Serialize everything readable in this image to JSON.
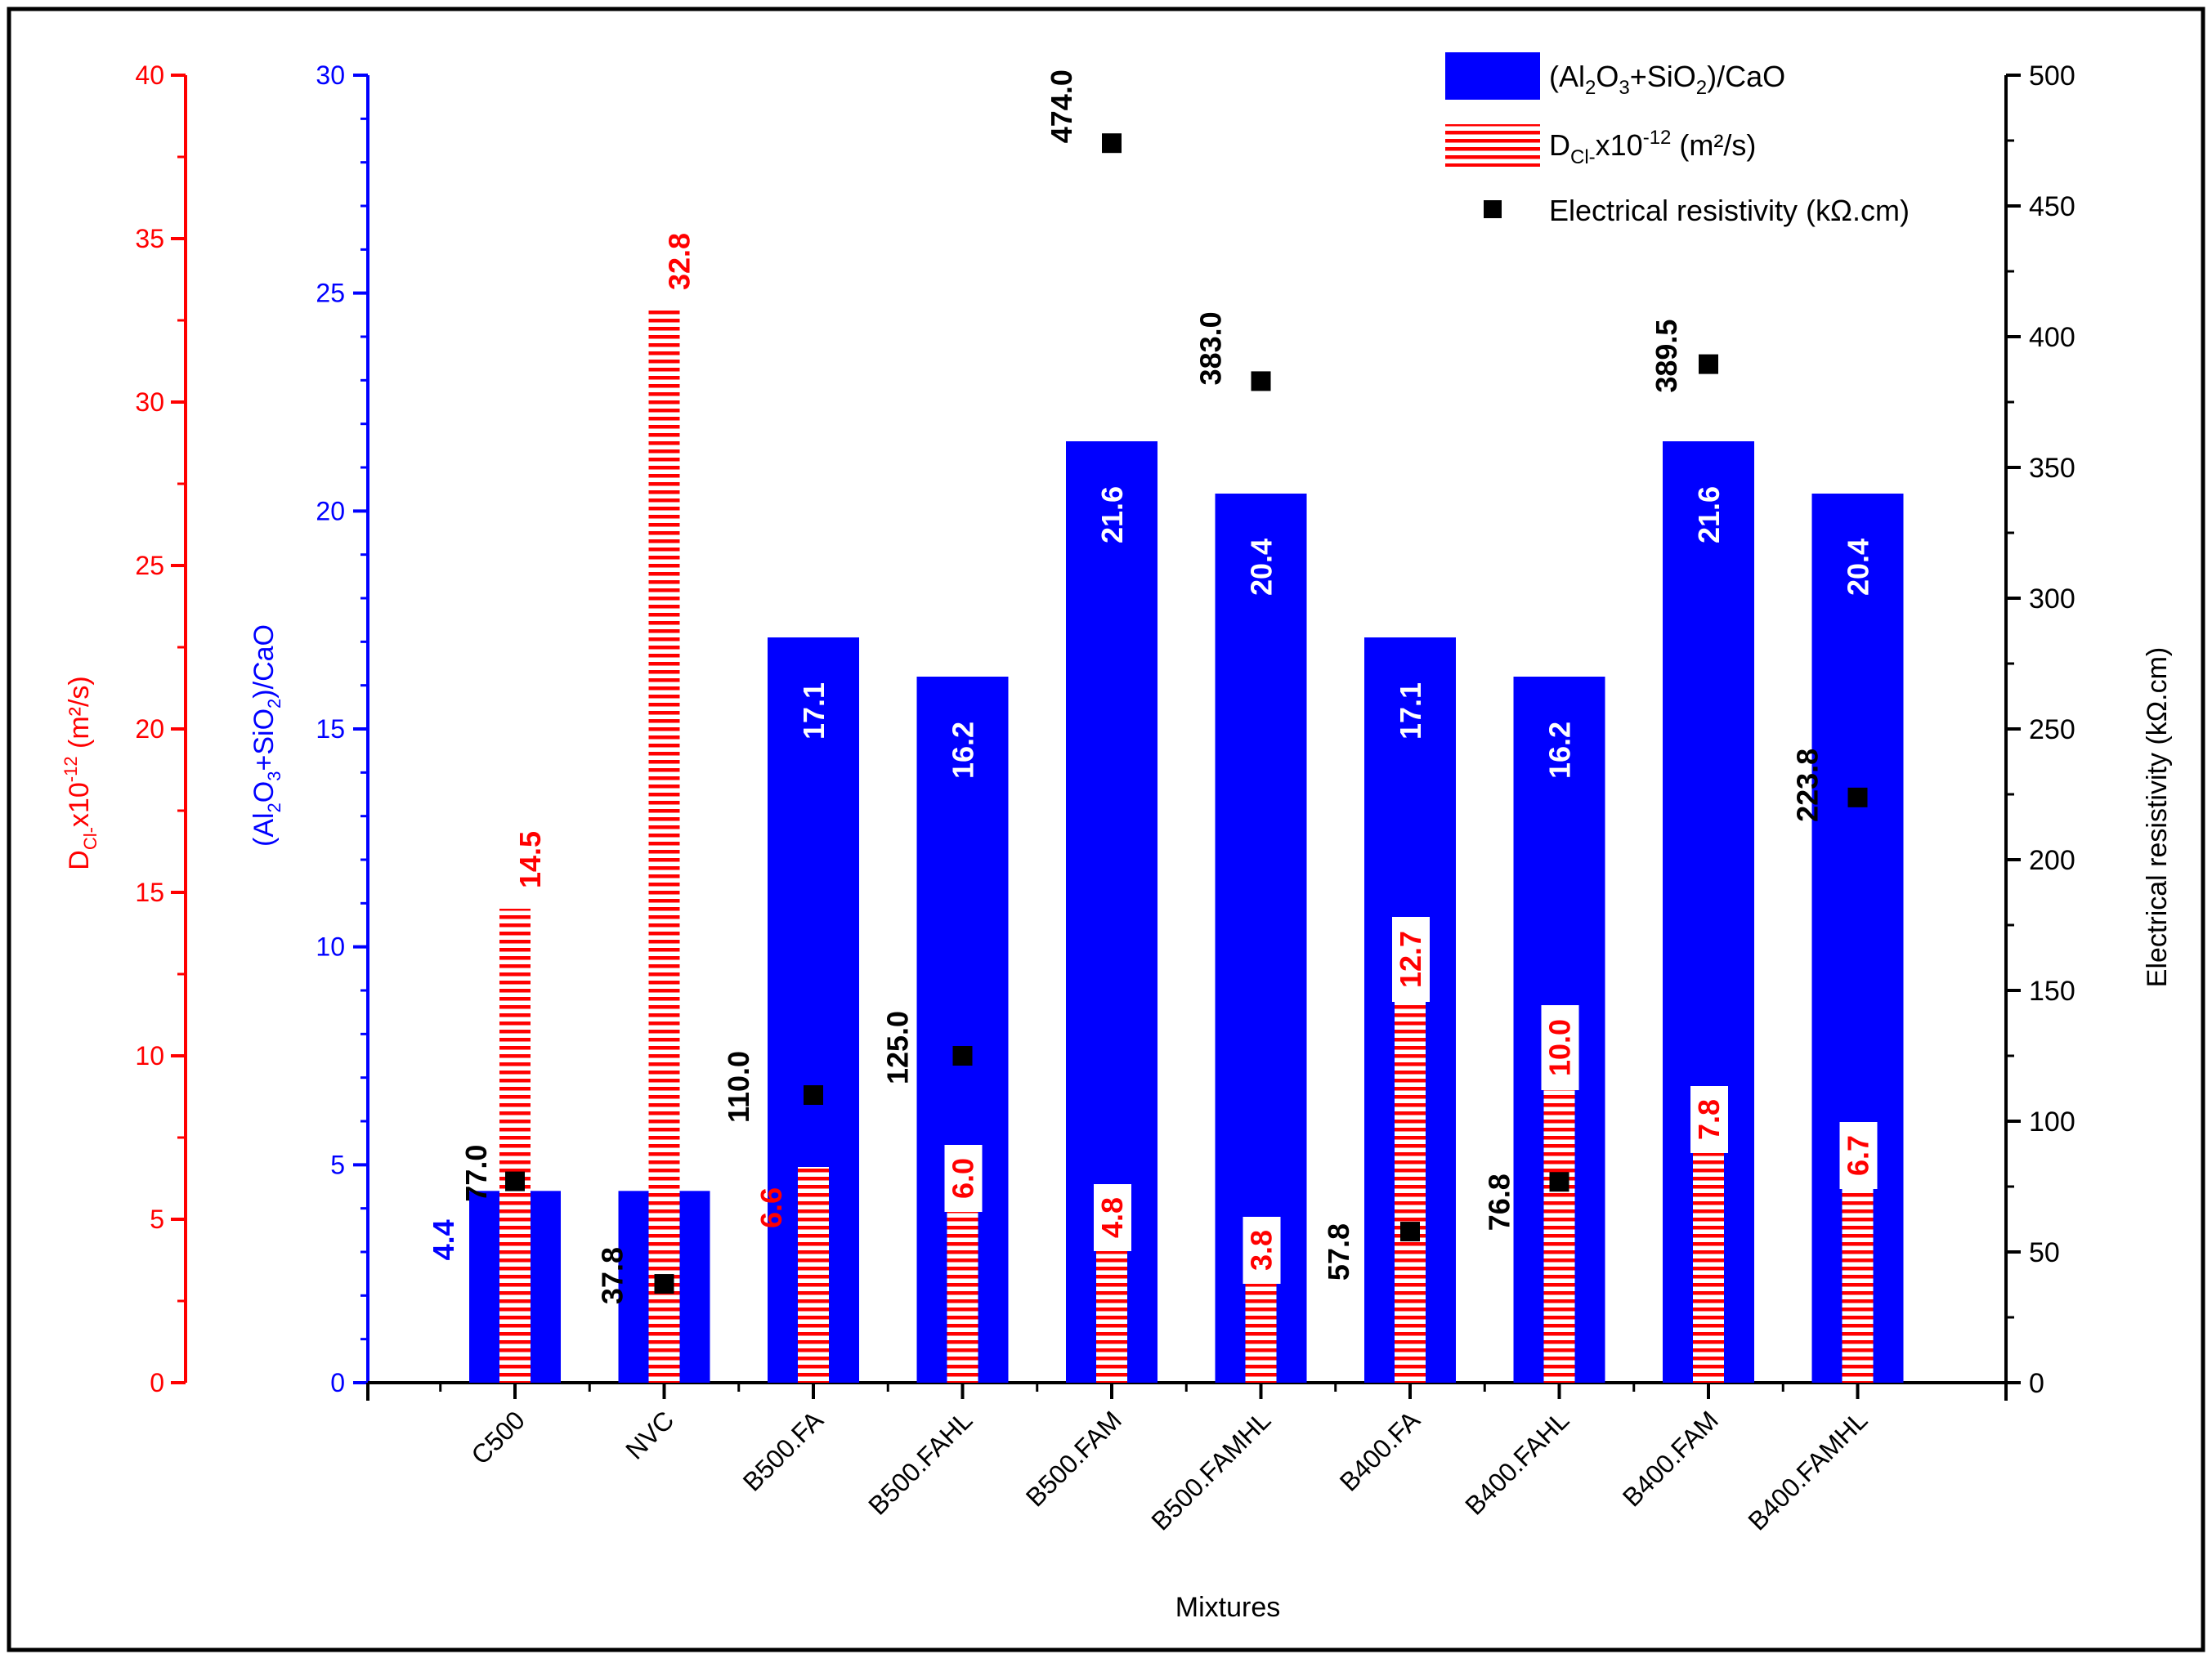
{
  "chart_data": {
    "type": "bar",
    "categories": [
      "C500",
      "NVC",
      "B500.FA",
      "B500.FAHL",
      "B500.FAM",
      "B500.FAMHL",
      "B400.FA",
      "B400.FAHL",
      "B400.FAM",
      "B400.FAMHL"
    ],
    "xlabel": "Mixtures",
    "series": [
      {
        "name": "(Al2O3+SiO2)/CaO",
        "axis": "left-inner",
        "values": [
          4.4,
          4.4,
          17.1,
          16.2,
          21.6,
          20.4,
          17.1,
          16.2,
          21.6,
          20.4
        ],
        "labels": [
          "4.4",
          "",
          "17.1",
          "16.2",
          "21.6",
          "20.4",
          "17.1",
          "16.2",
          "21.6",
          "20.4"
        ]
      },
      {
        "name": "DCl- x10^-12 (m²/s)",
        "axis": "left-outer",
        "values": [
          14.5,
          32.8,
          6.6,
          6.0,
          4.8,
          3.8,
          12.7,
          10.0,
          7.8,
          6.7
        ],
        "labels": [
          "14.5",
          "32.8",
          "6.6",
          "6.0",
          "4.8",
          "3.8",
          "12.7",
          "10.0",
          "7.8",
          "6.7"
        ]
      },
      {
        "name": "Electrical resistivity (kΩ.cm)",
        "axis": "right",
        "values": [
          77.0,
          37.8,
          110.0,
          125.0,
          474.0,
          383.0,
          57.8,
          76.8,
          389.5,
          223.8
        ],
        "labels": [
          "77.0",
          "37.8",
          "110.0",
          "125.0",
          "474.0",
          "383.0",
          "57.8",
          "76.8",
          "389.5",
          "223.8"
        ]
      }
    ],
    "axes": {
      "left_outer": {
        "min": 0,
        "max": 40,
        "ticks": [
          "0",
          "5",
          "10",
          "15",
          "20",
          "25",
          "30",
          "35",
          "40"
        ],
        "label_main": "D",
        "label_sub": "Cl-",
        "label_rest": "x10",
        "label_sup": "-12",
        "label_unit": " (m²/s)"
      },
      "left_inner": {
        "min": 0,
        "max": 30,
        "ticks": [
          "0",
          "5",
          "10",
          "15",
          "20",
          "25",
          "30"
        ],
        "label_parts": [
          "(Al",
          "2",
          "O",
          "3",
          "+SiO",
          "2",
          ")/CaO"
        ]
      },
      "right": {
        "min": 0,
        "max": 500,
        "ticks": [
          "0",
          "50",
          "100",
          "150",
          "200",
          "250",
          "300",
          "350",
          "400",
          "450",
          "500"
        ],
        "label": "Electrical resistivity (kΩ.cm)"
      }
    },
    "legend": {
      "position": "top-right",
      "item1_parts": [
        "(Al",
        "2",
        "O",
        "3",
        "+SiO",
        "2",
        ")/CaO"
      ],
      "item2_main": "D",
      "item2_sub": "Cl-",
      "item2_rest": "x10",
      "item2_sup": "-12",
      "item2_unit": " (m²/s)",
      "item3": "Electrical resistivity (kΩ.cm)"
    },
    "colors": {
      "ratio": "#0000ff",
      "dcl": "#ff0000",
      "resistivity": "#000000"
    }
  }
}
